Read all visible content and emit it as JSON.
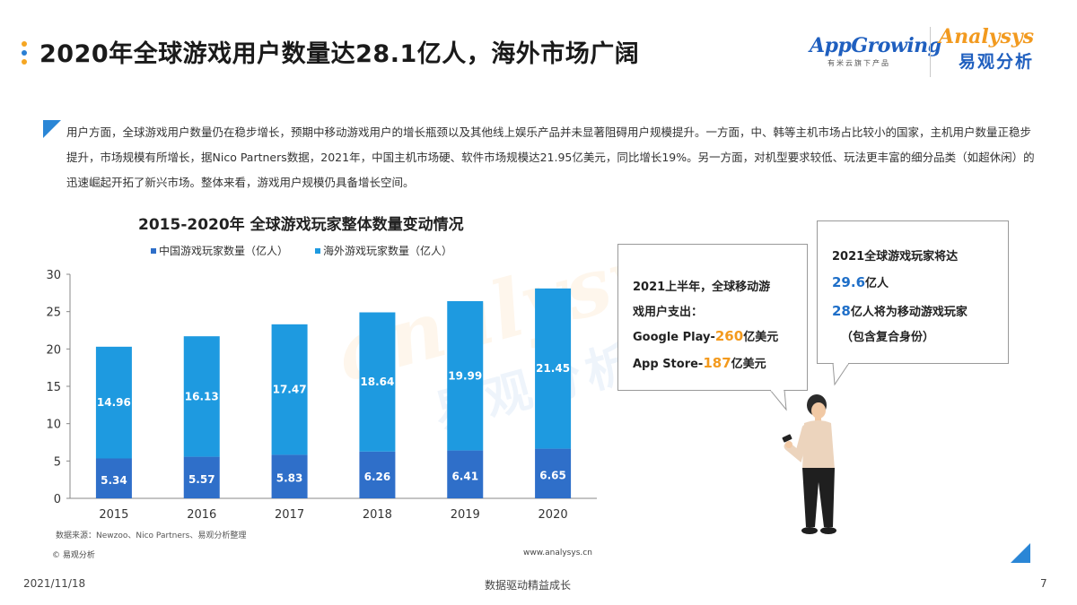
{
  "header": {
    "title": "2020年全球游戏用户数量达28.1亿人，海外市场广阔",
    "logo_appgrowing": "AppGrowing",
    "logo_appgrowing_sub": "有米云旗下产品",
    "logo_analysys": "Analysys",
    "logo_analysys_sub": "易观分析"
  },
  "intro": {
    "text": "用户方面，全球游戏用户数量仍在稳步增长，预期中移动游戏用户的增长瓶颈以及其他线上娱乐产品并未显著阻碍用户规模提升。一方面，中、韩等主机市场占比较小的国家，主机用户数量正稳步提升，市场规模有所增长，据Nico Partners数据，2021年，中国主机市场硬、软件市场规模达21.95亿美元，同比增长19%。另一方面，对机型要求较低、玩法更丰富的细分品类（如超休闲）的迅速崛起开拓了新兴市场。整体来看，游戏用户规模仍具备增长空间。"
  },
  "chart_data": {
    "type": "bar",
    "stacked": true,
    "title": "2015-2020年 全球游戏玩家整体数量变动情况",
    "categories": [
      "2015",
      "2016",
      "2017",
      "2018",
      "2019",
      "2020"
    ],
    "series": [
      {
        "name": "中国游戏玩家数量（亿人）",
        "values": [
          5.34,
          5.57,
          5.83,
          6.26,
          6.41,
          6.65
        ],
        "color": "#2f6fc9"
      },
      {
        "name": "海外游戏玩家数量（亿人）",
        "values": [
          14.96,
          16.13,
          17.47,
          18.64,
          19.99,
          21.45
        ],
        "color": "#1e9ae0"
      }
    ],
    "ylim": [
      0,
      30
    ],
    "yticks": [
      "0",
      "5",
      "10",
      "15",
      "20",
      "25",
      "30"
    ],
    "grid": false,
    "legend_position": "top"
  },
  "chart_footer": {
    "source": "数据来源：Newzoo、Nico Partners、易观分析整理",
    "logo": "易观分析",
    "url": "www.analysys.cn"
  },
  "watermark": {
    "latin": "analysys",
    "cjk": "易观分析"
  },
  "callout_spend": {
    "line1": "2021上半年，全球移动游",
    "line2": "戏用户支出：",
    "google_prefix": "Google Play-",
    "google_value": "260",
    "google_suffix": "亿美元",
    "apple_prefix": "App Store-",
    "apple_value": "187",
    "apple_suffix": "亿美元"
  },
  "callout_players": {
    "line1": "2021全球游戏玩家将达",
    "total_value": "29.6",
    "total_suffix": "亿人",
    "mobile_value": "28",
    "mobile_suffix": "亿人将为移动游戏玩家",
    "note": "（包含复合身份）"
  },
  "footer": {
    "date": "2021/11/18",
    "slogan": "数据驱动精益成长",
    "page": "7"
  },
  "colors": {
    "accent_blue": "#2a86d6",
    "accent_orange": "#f39a1e",
    "china_series": "#2f6fc9",
    "overseas_series": "#1e9ae0"
  }
}
